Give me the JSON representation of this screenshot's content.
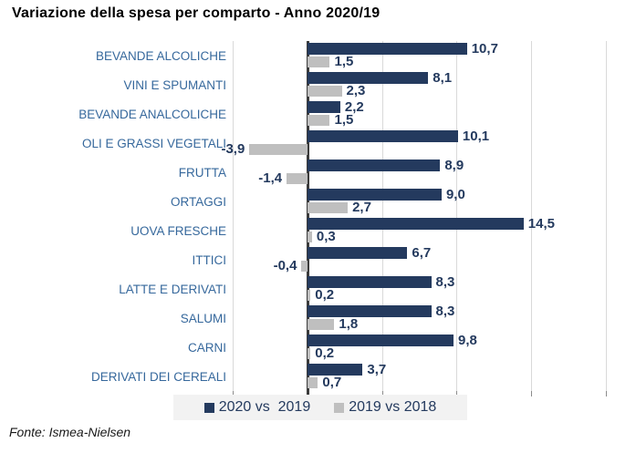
{
  "title": "Variazione della spesa per comparto - Anno 2020/19",
  "source": "Fonte: Ismea-Nielsen",
  "legend": [
    {
      "label": "2020 vs  2019",
      "color": "#243a5e"
    },
    {
      "label": "2019 vs 2018",
      "color": "#bfbfbf"
    }
  ],
  "colors": {
    "bar_navy": "#243a5e",
    "bar_gray": "#bfbfbf",
    "category_text": "#36689c",
    "value_text": "#243a5e",
    "gridline": "#d9d9d9",
    "axis": "#3b3b3b",
    "legend_bg": "#f2f2f2"
  },
  "chart_data": {
    "type": "bar",
    "orientation": "horizontal",
    "title": "Variazione della spesa per comparto - Anno 2020/19",
    "categories": [
      "BEVANDE ALCOLICHE",
      "VINI E SPUMANTI",
      "BEVANDE ANALCOLICHE",
      "OLI E GRASSI VEGETALI",
      "FRUTTA",
      "ORTAGGI",
      "UOVA FRESCHE",
      "ITTICI",
      "LATTE E DERIVATI",
      "SALUMI",
      "CARNI",
      "DERIVATI DEI CEREALI"
    ],
    "series": [
      {
        "name": "2020 vs 2019",
        "color": "#243a5e",
        "values": [
          10.7,
          8.1,
          2.2,
          10.1,
          8.9,
          9.0,
          14.5,
          6.7,
          8.3,
          8.3,
          9.8,
          3.7
        ],
        "labels": [
          "10,7",
          "8,1",
          "2,2",
          "10,1",
          "8,9",
          "9,0",
          "14,5",
          "6,7",
          "8,3",
          "8,3",
          "9,8",
          "3,7"
        ]
      },
      {
        "name": "2019 vs 2018",
        "color": "#bfbfbf",
        "values": [
          1.5,
          2.3,
          1.5,
          -3.9,
          -1.4,
          2.7,
          0.3,
          -0.4,
          0.2,
          1.8,
          0.2,
          0.7
        ],
        "labels": [
          "1,5",
          "2,3",
          "1,5",
          "-3,9",
          "-1,4",
          "2,7",
          "0,3",
          "-0,4",
          "0,2",
          "1,8",
          "0,2",
          "0,7"
        ]
      }
    ],
    "xlim": [
      -5,
      22
    ],
    "gridlines": [
      -5,
      0,
      5,
      10,
      15,
      20
    ],
    "grid": true,
    "legend_position": "bottom",
    "value_format": "italian-decimal-comma"
  }
}
